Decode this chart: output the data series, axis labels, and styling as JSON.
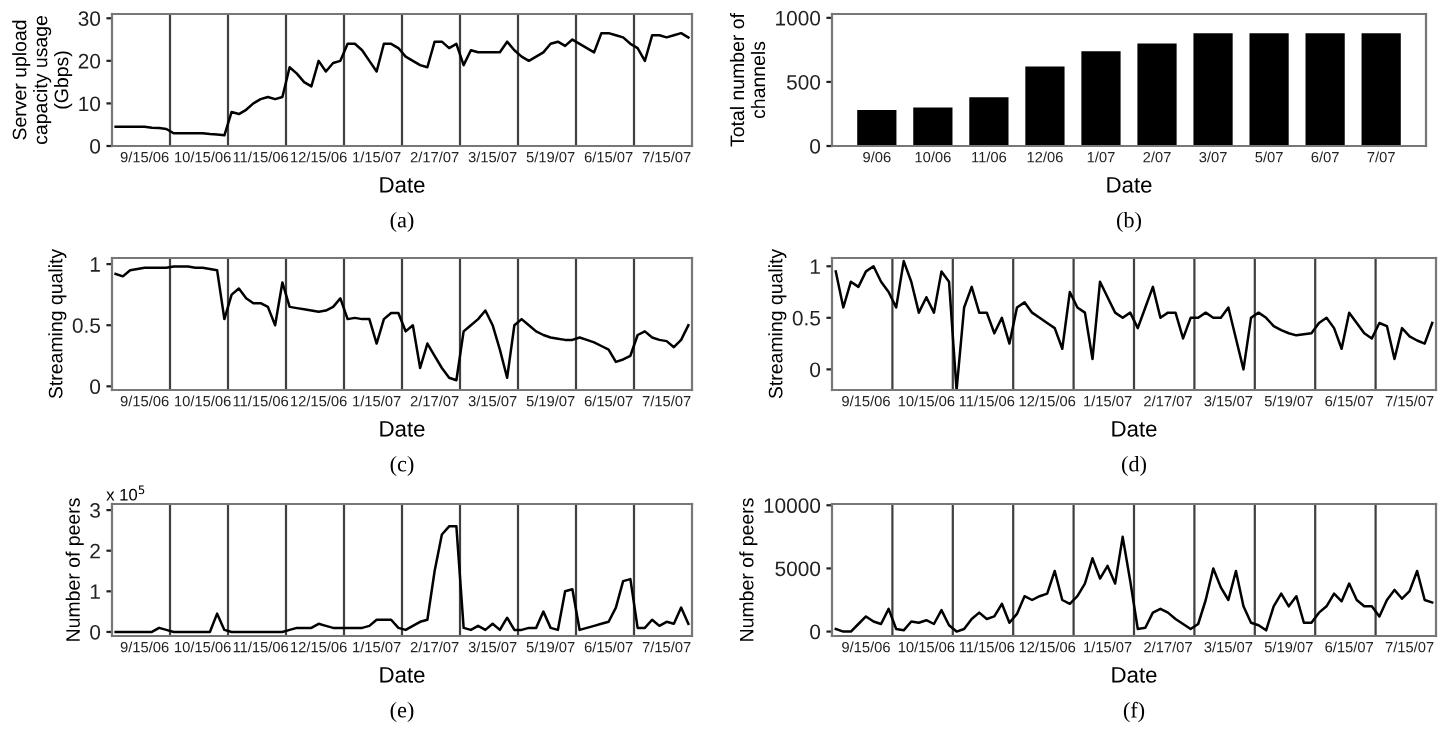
{
  "chart_data": [
    {
      "type": "line",
      "xlabel": "Date",
      "ylabel": "Server upload\ncapacity usage\n(Gbps)",
      "annotations": [
        "(a)"
      ],
      "ylim": [
        0,
        31
      ],
      "yticks": [
        0,
        10,
        20,
        30
      ],
      "categories": [
        null,
        null,
        null,
        null,
        "9/15/06",
        null,
        null,
        null,
        null,
        null,
        null,
        null,
        "10/15/06",
        null,
        null,
        null,
        null,
        null,
        null,
        null,
        "11/15/06",
        null,
        null,
        null,
        null,
        null,
        null,
        null,
        "12/15/06",
        null,
        null,
        null,
        null,
        null,
        null,
        null,
        "1/15/07",
        null,
        null,
        null,
        null,
        null,
        null,
        null,
        "2/17/07",
        null,
        null,
        null,
        null,
        null,
        null,
        null,
        "3/15/07",
        null,
        null,
        null,
        null,
        null,
        null,
        null,
        "5/19/07",
        null,
        null,
        null,
        null,
        null,
        null,
        null,
        "6/15/07",
        null,
        null,
        null,
        null,
        null,
        null,
        null,
        "7/15/07",
        null,
        null,
        null
      ],
      "series": [
        {
          "color": "#000000",
          "values": [
            4.5,
            4.5,
            4.5,
            4.5,
            4.5,
            4.3,
            4.2,
            4,
            3,
            3,
            3,
            3,
            3,
            2.8,
            2.7,
            2.5,
            8,
            7.5,
            8.5,
            10,
            11,
            11.5,
            11,
            11.5,
            18.5,
            17,
            15,
            14,
            20,
            17.5,
            19.5,
            20,
            24,
            24,
            22.5,
            20,
            17.5,
            24,
            24,
            23,
            21,
            20,
            19,
            18.5,
            24.5,
            24.5,
            23,
            24,
            19,
            22.5,
            22,
            22,
            22,
            22,
            24.5,
            22.5,
            21,
            20,
            21,
            22,
            24,
            24.5,
            23.5,
            25,
            24,
            23,
            22,
            26.5,
            26.5,
            26,
            25.5,
            24,
            23,
            20,
            26,
            26,
            25.5,
            26,
            26.5,
            25.5
          ]
        }
      ]
    },
    {
      "type": "bar",
      "xlabel": "Date",
      "ylabel": "Total number of\nchannels",
      "annotations": [
        "(b)"
      ],
      "ylim": [
        0,
        1030
      ],
      "yticks": [
        0,
        500,
        1000
      ],
      "categories": [
        "9/06",
        "10/06",
        "11/06",
        "12/06",
        "1/07",
        "2/07",
        "3/07",
        "5/07",
        "6/07",
        "7/07"
      ],
      "series": [
        {
          "color": "#000000",
          "values": [
            280,
            300,
            380,
            620,
            740,
            800,
            880,
            880,
            880,
            880
          ]
        }
      ]
    },
    {
      "type": "line",
      "xlabel": "Date",
      "ylabel": "Streaming quality",
      "annotations": [
        "(c)"
      ],
      "ylim": [
        -0.03,
        1.05
      ],
      "yticks": [
        0,
        0.5,
        1
      ],
      "categories": [
        null,
        null,
        null,
        null,
        "9/15/06",
        null,
        null,
        null,
        null,
        null,
        null,
        null,
        "10/15/06",
        null,
        null,
        null,
        null,
        null,
        null,
        null,
        "11/15/06",
        null,
        null,
        null,
        null,
        null,
        null,
        null,
        "12/15/06",
        null,
        null,
        null,
        null,
        null,
        null,
        null,
        "1/15/07",
        null,
        null,
        null,
        null,
        null,
        null,
        null,
        "2/17/07",
        null,
        null,
        null,
        null,
        null,
        null,
        null,
        "3/15/07",
        null,
        null,
        null,
        null,
        null,
        null,
        null,
        "5/19/07",
        null,
        null,
        null,
        null,
        null,
        null,
        null,
        "6/15/07",
        null,
        null,
        null,
        null,
        null,
        null,
        null,
        "7/15/07",
        null,
        null,
        null
      ],
      "series": [
        {
          "color": "#000000",
          "values": [
            0.92,
            0.9,
            0.95,
            0.96,
            0.97,
            0.97,
            0.97,
            0.97,
            0.98,
            0.98,
            0.98,
            0.97,
            0.97,
            0.96,
            0.95,
            0.55,
            0.75,
            0.8,
            0.72,
            0.68,
            0.68,
            0.65,
            0.5,
            0.85,
            0.65,
            0.64,
            0.63,
            0.62,
            0.61,
            0.62,
            0.65,
            0.72,
            0.55,
            0.56,
            0.55,
            0.55,
            0.35,
            0.55,
            0.6,
            0.6,
            0.45,
            0.5,
            0.15,
            0.35,
            0.25,
            0.15,
            0.07,
            0.05,
            0.45,
            0.5,
            0.55,
            0.62,
            0.5,
            0.3,
            0.07,
            0.5,
            0.55,
            0.5,
            0.45,
            0.42,
            0.4,
            0.39,
            0.38,
            0.38,
            0.4,
            0.38,
            0.36,
            0.33,
            0.3,
            0.2,
            0.22,
            0.25,
            0.42,
            0.45,
            0.4,
            0.38,
            0.37,
            0.32,
            0.38,
            0.5
          ]
        }
      ]
    },
    {
      "type": "line",
      "xlabel": "Date",
      "ylabel": "Streaming quality",
      "annotations": [
        "(d)"
      ],
      "ylim": [
        -0.2,
        1.08
      ],
      "yticks": [
        0,
        0.5,
        1
      ],
      "categories": [
        null,
        null,
        null,
        null,
        "9/15/06",
        null,
        null,
        null,
        null,
        null,
        null,
        null,
        "10/15/06",
        null,
        null,
        null,
        null,
        null,
        null,
        null,
        "11/15/06",
        null,
        null,
        null,
        null,
        null,
        null,
        null,
        "12/15/06",
        null,
        null,
        null,
        null,
        null,
        null,
        null,
        "1/15/07",
        null,
        null,
        null,
        null,
        null,
        null,
        null,
        "2/17/07",
        null,
        null,
        null,
        null,
        null,
        null,
        null,
        "3/15/07",
        null,
        null,
        null,
        null,
        null,
        null,
        null,
        "5/19/07",
        null,
        null,
        null,
        null,
        null,
        null,
        null,
        "6/15/07",
        null,
        null,
        null,
        null,
        null,
        null,
        null,
        "7/15/07",
        null,
        null,
        null
      ],
      "series": [
        {
          "color": "#000000",
          "values": [
            0.95,
            0.6,
            0.85,
            0.8,
            0.95,
            1.0,
            0.85,
            0.75,
            0.6,
            1.05,
            0.85,
            0.55,
            0.7,
            0.55,
            0.95,
            0.85,
            -0.2,
            0.6,
            0.8,
            0.55,
            0.55,
            0.35,
            0.5,
            0.25,
            0.6,
            0.65,
            0.55,
            0.5,
            0.45,
            0.4,
            0.2,
            0.75,
            0.6,
            0.55,
            0.1,
            0.85,
            0.7,
            0.55,
            0.5,
            0.55,
            0.4,
            0.6,
            0.8,
            0.5,
            0.55,
            0.55,
            0.3,
            0.5,
            0.5,
            0.55,
            0.5,
            0.5,
            0.6,
            0.3,
            0.0,
            0.5,
            0.55,
            0.5,
            0.42,
            0.38,
            0.35,
            0.33,
            0.34,
            0.35,
            0.45,
            0.5,
            0.4,
            0.2,
            0.55,
            0.45,
            0.35,
            0.3,
            0.45,
            0.42,
            0.1,
            0.4,
            0.32,
            0.28,
            0.25,
            0.45
          ]
        }
      ]
    },
    {
      "type": "line",
      "xlabel": "Date",
      "ylabel": "Number of peers",
      "annotations": [
        "(e)",
        "x 10$^{5}$"
      ],
      "ylim": [
        -0.1,
        3.15
      ],
      "yticks": [
        0,
        1,
        2,
        3
      ],
      "categories": [
        null,
        null,
        null,
        null,
        "9/15/06",
        null,
        null,
        null,
        null,
        null,
        null,
        null,
        "10/15/06",
        null,
        null,
        null,
        null,
        null,
        null,
        null,
        "11/15/06",
        null,
        null,
        null,
        null,
        null,
        null,
        null,
        "12/15/06",
        null,
        null,
        null,
        null,
        null,
        null,
        null,
        "1/15/07",
        null,
        null,
        null,
        null,
        null,
        null,
        null,
        "2/17/07",
        null,
        null,
        null,
        null,
        null,
        null,
        null,
        "3/15/07",
        null,
        null,
        null,
        null,
        null,
        null,
        null,
        "5/19/07",
        null,
        null,
        null,
        null,
        null,
        null,
        null,
        "6/15/07",
        null,
        null,
        null,
        null,
        null,
        null,
        null,
        "7/15/07",
        null,
        null,
        null
      ],
      "series": [
        {
          "color": "#000000",
          "values": [
            0,
            0,
            0,
            0,
            0,
            0,
            0.1,
            0.05,
            0,
            0,
            0,
            0,
            0,
            0,
            0.45,
            0.05,
            0,
            0,
            0,
            0,
            0,
            0,
            0,
            0,
            0.05,
            0.1,
            0.1,
            0.1,
            0.2,
            0.15,
            0.1,
            0.1,
            0.1,
            0.1,
            0.1,
            0.15,
            0.3,
            0.3,
            0.3,
            0.1,
            0.05,
            0.15,
            0.25,
            0.3,
            1.5,
            2.4,
            2.6,
            2.6,
            0.1,
            0.05,
            0.15,
            0.05,
            0.2,
            0.05,
            0.35,
            0.05,
            0.05,
            0.1,
            0.1,
            0.5,
            0.1,
            0.05,
            1,
            1.05,
            0.05,
            0.1,
            0.15,
            0.2,
            0.25,
            0.6,
            1.25,
            1.3,
            0.1,
            0.1,
            0.3,
            0.15,
            0.25,
            0.2,
            0.6,
            0.2
          ]
        }
      ]
    },
    {
      "type": "line",
      "xlabel": "Date",
      "ylabel": "Number of peers",
      "annotations": [
        "(f)"
      ],
      "ylim": [
        -350,
        10100
      ],
      "yticks": [
        0,
        5000,
        10000
      ],
      "categories": [
        null,
        null,
        null,
        null,
        "9/15/06",
        null,
        null,
        null,
        null,
        null,
        null,
        null,
        "10/15/06",
        null,
        null,
        null,
        null,
        null,
        null,
        null,
        "11/15/06",
        null,
        null,
        null,
        null,
        null,
        null,
        null,
        "12/15/06",
        null,
        null,
        null,
        null,
        null,
        null,
        null,
        "1/15/07",
        null,
        null,
        null,
        null,
        null,
        null,
        null,
        "2/17/07",
        null,
        null,
        null,
        null,
        null,
        null,
        null,
        "3/15/07",
        null,
        null,
        null,
        null,
        null,
        null,
        null,
        "5/19/07",
        null,
        null,
        null,
        null,
        null,
        null,
        null,
        "6/15/07",
        null,
        null,
        null,
        null,
        null,
        null,
        null,
        "7/15/07",
        null,
        null,
        null
      ],
      "series": [
        {
          "color": "#000000",
          "values": [
            200,
            0,
            0,
            600,
            1200,
            800,
            600,
            1800,
            200,
            100,
            800,
            700,
            900,
            600,
            1700,
            500,
            0,
            200,
            1000,
            1500,
            1000,
            1200,
            2200,
            700,
            1400,
            2800,
            2500,
            2800,
            3000,
            4800,
            2500,
            2200,
            2800,
            3800,
            5800,
            4200,
            5200,
            3800,
            7500,
            4000,
            200,
            300,
            1500,
            1800,
            1500,
            1000,
            600,
            200,
            600,
            2500,
            5000,
            3500,
            2500,
            4800,
            2000,
            700,
            500,
            100,
            2000,
            3000,
            2000,
            2800,
            700,
            700,
            1500,
            2000,
            3000,
            2400,
            3800,
            2500,
            2000,
            2000,
            1200,
            2500,
            3300,
            2600,
            3200,
            4800,
            2500,
            2300
          ]
        }
      ]
    }
  ]
}
